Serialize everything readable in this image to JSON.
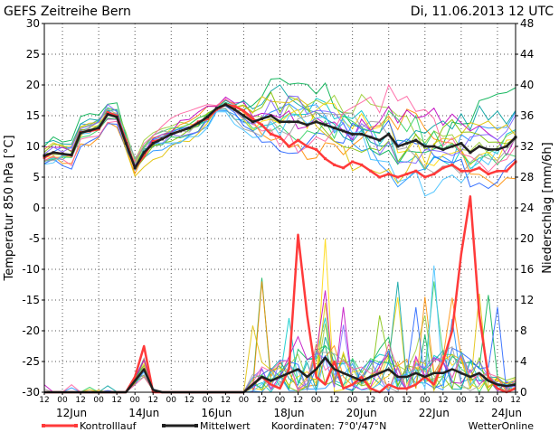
{
  "chart_data": {
    "type": "line",
    "title": "GEFS Zeitreihe Bern",
    "date_label": "Di, 11.06.2013 12 UTC",
    "left_axis": {
      "label": "Temperatur 850 hPa [°C]",
      "min": -30,
      "max": 30,
      "ticks": [
        "30",
        "25",
        "20",
        "15",
        "10",
        "5",
        "0",
        "-5",
        "-10",
        "-15",
        "-20",
        "-25",
        "-30"
      ]
    },
    "right_axis": {
      "label": "Niederschlag [mm/6h]",
      "min": 0,
      "max": 48,
      "ticks": [
        "48",
        "44",
        "40",
        "36",
        "32",
        "28",
        "24",
        "20",
        "16",
        "12",
        "8",
        "4",
        "0"
      ]
    },
    "x_axis": {
      "unit": "hours since 11Jun 12UTC",
      "hour_ticks": [
        "12",
        "00",
        "12",
        "00",
        "12",
        "00",
        "12",
        "00",
        "12",
        "00",
        "12",
        "00",
        "12",
        "00",
        "12",
        "00",
        "12",
        "00",
        "12",
        "00",
        "12",
        "00",
        "12",
        "00",
        "12",
        "00",
        "12"
      ],
      "day_labels": [
        {
          "label": "12Jun",
          "at_hours": 18
        },
        {
          "label": "14Jun",
          "at_hours": 66
        },
        {
          "label": "16Jun",
          "at_hours": 114
        },
        {
          "label": "18Jun",
          "at_hours": 162
        },
        {
          "label": "20Jun",
          "at_hours": 210
        },
        {
          "label": "22Jun",
          "at_hours": 258
        },
        {
          "label": "24Jun",
          "at_hours": 306
        }
      ],
      "max_hours": 312
    },
    "grid": true,
    "zero_line": true,
    "legend": [
      {
        "name": "Kontrolllauf",
        "color": "#ff3a3a"
      },
      {
        "name": "Mittelwert",
        "color": "#202020"
      }
    ],
    "footer": {
      "coordinates": "Koordinaten: 7°0'/47°N",
      "credit": "WetterOnline"
    },
    "series": [
      {
        "name": "Kontrolllauf",
        "color": "#ff3a3a",
        "temperature": [
          [
            0,
            8.2
          ],
          [
            6,
            9
          ],
          [
            12,
            8.8
          ],
          [
            18,
            8.5
          ],
          [
            24,
            12.3
          ],
          [
            30,
            12.5
          ],
          [
            36,
            12.8
          ],
          [
            42,
            15.5
          ],
          [
            48,
            15
          ],
          [
            54,
            11
          ],
          [
            60,
            6.5
          ],
          [
            66,
            8.5
          ],
          [
            72,
            10.8
          ],
          [
            78,
            11.2
          ],
          [
            84,
            12
          ],
          [
            90,
            12.5
          ],
          [
            96,
            13
          ],
          [
            102,
            14
          ],
          [
            108,
            14.5
          ],
          [
            114,
            16
          ],
          [
            120,
            16.8
          ],
          [
            126,
            16.5
          ],
          [
            132,
            15.8
          ],
          [
            138,
            14.5
          ],
          [
            144,
            13.5
          ],
          [
            150,
            12
          ],
          [
            156,
            11.5
          ],
          [
            162,
            10
          ],
          [
            168,
            11
          ],
          [
            174,
            10
          ],
          [
            180,
            9.5
          ],
          [
            186,
            8
          ],
          [
            192,
            7
          ],
          [
            198,
            6.5
          ],
          [
            204,
            7.5
          ],
          [
            210,
            7
          ],
          [
            216,
            6
          ],
          [
            222,
            5
          ],
          [
            228,
            5.5
          ],
          [
            234,
            5
          ],
          [
            240,
            5.5
          ],
          [
            246,
            6
          ],
          [
            252,
            5
          ],
          [
            258,
            5.5
          ],
          [
            264,
            6.5
          ],
          [
            270,
            7
          ],
          [
            276,
            6
          ],
          [
            282,
            6
          ],
          [
            288,
            6.5
          ],
          [
            294,
            5.5
          ],
          [
            300,
            6
          ],
          [
            306,
            6
          ],
          [
            312,
            7.5
          ]
        ],
        "precipitation": [
          [
            0,
            0
          ],
          [
            6,
            0
          ],
          [
            12,
            0
          ],
          [
            18,
            0
          ],
          [
            24,
            0
          ],
          [
            30,
            0
          ],
          [
            36,
            0
          ],
          [
            42,
            0
          ],
          [
            48,
            0
          ],
          [
            54,
            0
          ],
          [
            60,
            2
          ],
          [
            66,
            6
          ],
          [
            72,
            0
          ],
          [
            78,
            0
          ],
          [
            84,
            0
          ],
          [
            90,
            0
          ],
          [
            96,
            0
          ],
          [
            102,
            0
          ],
          [
            108,
            0
          ],
          [
            114,
            0
          ],
          [
            120,
            0
          ],
          [
            126,
            0
          ],
          [
            132,
            0
          ],
          [
            138,
            1
          ],
          [
            144,
            2
          ],
          [
            150,
            1
          ],
          [
            156,
            0.5
          ],
          [
            162,
            3
          ],
          [
            168,
            20.5
          ],
          [
            174,
            10
          ],
          [
            180,
            2
          ],
          [
            186,
            1
          ],
          [
            192,
            4
          ],
          [
            198,
            0.5
          ],
          [
            204,
            1
          ],
          [
            210,
            2
          ],
          [
            216,
            0.5
          ],
          [
            222,
            0
          ],
          [
            228,
            1
          ],
          [
            234,
            0.5
          ],
          [
            240,
            0.5
          ],
          [
            246,
            1
          ],
          [
            252,
            2
          ],
          [
            258,
            1
          ],
          [
            264,
            4
          ],
          [
            270,
            8
          ],
          [
            276,
            18
          ],
          [
            282,
            25.5
          ],
          [
            288,
            10
          ],
          [
            294,
            2
          ],
          [
            300,
            0.5
          ],
          [
            306,
            0
          ],
          [
            312,
            0.5
          ]
        ]
      },
      {
        "name": "Mittelwert",
        "color": "#202020",
        "temperature": [
          [
            0,
            8.5
          ],
          [
            6,
            9
          ],
          [
            12,
            8.8
          ],
          [
            18,
            8.6
          ],
          [
            24,
            12.2
          ],
          [
            30,
            12.6
          ],
          [
            36,
            13
          ],
          [
            42,
            15.2
          ],
          [
            48,
            14.8
          ],
          [
            54,
            10.5
          ],
          [
            60,
            6.5
          ],
          [
            66,
            9
          ],
          [
            72,
            10.5
          ],
          [
            78,
            11.2
          ],
          [
            84,
            12
          ],
          [
            90,
            12.5
          ],
          [
            96,
            13
          ],
          [
            102,
            13.8
          ],
          [
            108,
            14.8
          ],
          [
            114,
            16.2
          ],
          [
            120,
            16.8
          ],
          [
            126,
            16
          ],
          [
            132,
            15
          ],
          [
            138,
            14
          ],
          [
            144,
            14.5
          ],
          [
            150,
            15
          ],
          [
            156,
            14
          ],
          [
            162,
            14
          ],
          [
            168,
            14
          ],
          [
            174,
            13.5
          ],
          [
            180,
            14
          ],
          [
            186,
            13.5
          ],
          [
            192,
            13
          ],
          [
            198,
            12.5
          ],
          [
            204,
            12
          ],
          [
            210,
            12
          ],
          [
            216,
            11.5
          ],
          [
            222,
            11
          ],
          [
            228,
            12
          ],
          [
            234,
            10
          ],
          [
            240,
            10.5
          ],
          [
            246,
            11
          ],
          [
            252,
            10
          ],
          [
            258,
            10
          ],
          [
            264,
            9.5
          ],
          [
            270,
            10
          ],
          [
            276,
            10.5
          ],
          [
            282,
            9
          ],
          [
            288,
            10
          ],
          [
            294,
            9.5
          ],
          [
            300,
            9.5
          ],
          [
            306,
            10
          ],
          [
            312,
            11.5
          ]
        ],
        "precipitation": [
          [
            0,
            0
          ],
          [
            6,
            0
          ],
          [
            12,
            0
          ],
          [
            18,
            0
          ],
          [
            24,
            0
          ],
          [
            30,
            0
          ],
          [
            36,
            0
          ],
          [
            42,
            0
          ],
          [
            48,
            0
          ],
          [
            54,
            0
          ],
          [
            60,
            1.5
          ],
          [
            66,
            3
          ],
          [
            72,
            0.3
          ],
          [
            78,
            0
          ],
          [
            84,
            0
          ],
          [
            90,
            0
          ],
          [
            96,
            0
          ],
          [
            102,
            0
          ],
          [
            108,
            0
          ],
          [
            114,
            0
          ],
          [
            120,
            0
          ],
          [
            126,
            0
          ],
          [
            132,
            0
          ],
          [
            138,
            1
          ],
          [
            144,
            2
          ],
          [
            150,
            1.5
          ],
          [
            156,
            2
          ],
          [
            162,
            2.5
          ],
          [
            168,
            3
          ],
          [
            174,
            2
          ],
          [
            180,
            3
          ],
          [
            186,
            4.5
          ],
          [
            192,
            3
          ],
          [
            198,
            2.5
          ],
          [
            204,
            2
          ],
          [
            210,
            1.5
          ],
          [
            216,
            2
          ],
          [
            222,
            2.5
          ],
          [
            228,
            3
          ],
          [
            234,
            2
          ],
          [
            240,
            2
          ],
          [
            246,
            2.5
          ],
          [
            252,
            2
          ],
          [
            258,
            2.5
          ],
          [
            264,
            2.5
          ],
          [
            270,
            3
          ],
          [
            276,
            2.5
          ],
          [
            282,
            2
          ],
          [
            288,
            2.5
          ],
          [
            294,
            1.5
          ],
          [
            300,
            1
          ],
          [
            306,
            0.8
          ],
          [
            312,
            1
          ]
        ]
      }
    ]
  }
}
